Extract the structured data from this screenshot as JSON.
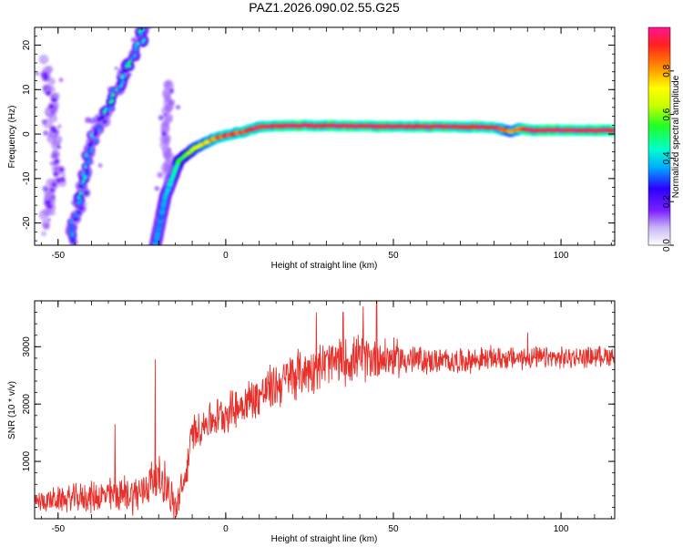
{
  "title": "PAZ1.2026.090.02.55.G25",
  "colors": {
    "snr_line": "#e8302a",
    "frame": "#000000"
  },
  "chart_data": [
    {
      "type": "heatmap",
      "name": "spectrogram",
      "xlabel": "Height of straight line (km)",
      "ylabel": "Frequency (Hz)",
      "xlim": [
        -57,
        116
      ],
      "ylim": [
        -25,
        24
      ],
      "x_ticks": [
        -50,
        0,
        50,
        100
      ],
      "y_ticks": [
        -20,
        -10,
        0,
        10,
        20
      ],
      "x_tick_labels": [
        "-50",
        "0",
        "50",
        "100"
      ],
      "y_tick_labels": [
        "-20",
        "-10",
        "0",
        "10",
        "20"
      ],
      "traces": [
        {
          "name": "main_tone",
          "points": [
            [
              -21,
              -25
            ],
            [
              -18,
              -14
            ],
            [
              -14,
              -6
            ],
            [
              -9,
              -3
            ],
            [
              -4,
              -1.2
            ],
            [
              0,
              -0.3
            ],
            [
              5,
              0.5
            ],
            [
              10,
              1.6
            ],
            [
              20,
              1.9
            ],
            [
              40,
              1.8
            ],
            [
              60,
              1.7
            ],
            [
              80,
              1.5
            ],
            [
              85,
              0.6
            ],
            [
              88,
              1.2
            ],
            [
              90,
              0.9
            ],
            [
              116,
              0.8
            ]
          ],
          "amplitude": [
            0.35,
            0.35,
            0.5,
            0.65,
            0.8,
            0.9,
            0.9,
            0.95,
            1.0,
            1.0,
            1.0,
            1.0,
            0.7,
            0.85,
            1.0,
            1.0
          ]
        },
        {
          "name": "diagonal_tone",
          "points": [
            [
              -46,
              -24
            ],
            [
              -40,
              -2
            ],
            [
              -33,
              10
            ],
            [
              -27,
              18
            ],
            [
              -24,
              24
            ]
          ],
          "amplitude": [
            0.3,
            0.35,
            0.4,
            0.35,
            0.35
          ]
        },
        {
          "name": "vertical_band",
          "points": [
            [
              -17,
              -10
            ],
            [
              -18,
              0
            ],
            [
              -17,
              12
            ]
          ],
          "amplitude": [
            0.12,
            0.12,
            0.12
          ]
        },
        {
          "name": "left_cluster",
          "points": [
            [
              -54,
              -20
            ],
            [
              -50,
              -8
            ],
            [
              -52,
              5
            ],
            [
              -53,
              16
            ]
          ],
          "amplitude": [
            0.15,
            0.15,
            0.15,
            0.15
          ]
        }
      ],
      "colorbar": {
        "label": "Normalized spectral amplitude",
        "range": [
          0.0,
          1.0
        ],
        "ticks": [
          0.0,
          0.2,
          0.4,
          0.6,
          0.8
        ],
        "tick_labels": [
          "0.0",
          "0.2",
          "0.4",
          "0.6",
          "0.8"
        ]
      }
    },
    {
      "type": "line",
      "name": "snr",
      "xlabel": "Height of straight line (km)",
      "ylabel": "SNR (10 * v/v)",
      "xlim": [
        -57,
        116
      ],
      "ylim": [
        0,
        3800
      ],
      "x_ticks": [
        -50,
        0,
        50,
        100
      ],
      "y_ticks": [
        1000,
        2000,
        3000
      ],
      "x_tick_labels": [
        "-50",
        "0",
        "50",
        "100"
      ],
      "y_tick_labels": [
        "1000",
        "2000",
        "3000"
      ],
      "trend": [
        [
          -57,
          300
        ],
        [
          -40,
          380
        ],
        [
          -25,
          450
        ],
        [
          -22,
          700
        ],
        [
          -18,
          650
        ],
        [
          -15,
          150
        ],
        [
          -12,
          700
        ],
        [
          -10,
          1500
        ],
        [
          -5,
          1700
        ],
        [
          0,
          1850
        ],
        [
          10,
          2150
        ],
        [
          20,
          2500
        ],
        [
          30,
          2700
        ],
        [
          40,
          2800
        ],
        [
          50,
          2800
        ],
        [
          60,
          2750
        ],
        [
          70,
          2750
        ],
        [
          80,
          2800
        ],
        [
          100,
          2800
        ],
        [
          116,
          2850
        ]
      ],
      "noise_amplitude": [
        [
          -57,
          200
        ],
        [
          -20,
          450
        ],
        [
          -10,
          350
        ],
        [
          20,
          500
        ],
        [
          45,
          450
        ],
        [
          60,
          260
        ],
        [
          116,
          200
        ]
      ],
      "peaks": [
        [
          -33,
          1650
        ],
        [
          -21,
          2780
        ],
        [
          27,
          3600
        ],
        [
          35,
          3600
        ],
        [
          41,
          3700
        ],
        [
          45,
          3850
        ],
        [
          58,
          3000
        ],
        [
          90,
          3250
        ]
      ]
    }
  ]
}
